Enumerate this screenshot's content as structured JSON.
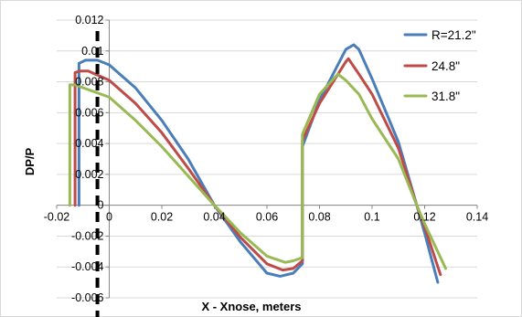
{
  "chart_data": {
    "type": "line",
    "xlabel": "X - Xnose, meters",
    "ylabel": "DP/P",
    "xlim": [
      -0.02,
      0.14
    ],
    "ylim": [
      -0.006,
      0.012
    ],
    "x_ticks": [
      -0.02,
      0,
      0.02,
      0.04,
      0.06,
      0.08,
      0.1,
      0.12,
      0.14
    ],
    "y_ticks": [
      -0.006,
      -0.004,
      -0.002,
      0,
      0.002,
      0.004,
      0.006,
      0.008,
      0.01,
      0.012
    ],
    "x_tick_labels": [
      "-0.02",
      "0",
      "0.02",
      "0.04",
      "0.06",
      "0.08",
      "0.1",
      "0.12",
      "0.14"
    ],
    "y_tick_labels": [
      "-0.006",
      "-0.004",
      "-0.002",
      "0",
      "0.002",
      "0.004",
      "0.006",
      "0.008",
      "0.01",
      "0.012"
    ],
    "grid": "horizontal",
    "legend": "right",
    "marker_line": {
      "x": -0.0045,
      "style": "dashed",
      "color": "#000000"
    },
    "series": [
      {
        "name": "R=21.2\"",
        "color": "#4a7ebb",
        "points": [
          [
            -0.0115,
            0
          ],
          [
            -0.0115,
            0.0092
          ],
          [
            -0.009,
            0.0094
          ],
          [
            -0.0045,
            0.0094
          ],
          [
            0.0,
            0.0091
          ],
          [
            0.01,
            0.0076
          ],
          [
            0.02,
            0.0055
          ],
          [
            0.03,
            0.003
          ],
          [
            0.04,
            0.0
          ],
          [
            0.05,
            -0.0024
          ],
          [
            0.06,
            -0.0044
          ],
          [
            0.065,
            -0.0046
          ],
          [
            0.07,
            -0.0044
          ],
          [
            0.0735,
            -0.0038
          ],
          [
            0.0735,
            0.0038
          ],
          [
            0.08,
            0.0068
          ],
          [
            0.09,
            0.0101
          ],
          [
            0.093,
            0.0104
          ],
          [
            0.095,
            0.0101
          ],
          [
            0.1,
            0.0082
          ],
          [
            0.11,
            0.0041
          ],
          [
            0.117,
            0.0
          ],
          [
            0.12,
            -0.0018
          ],
          [
            0.125,
            -0.005
          ]
        ]
      },
      {
        "name": "24.8\"",
        "color": "#be4b48",
        "points": [
          [
            -0.013,
            0
          ],
          [
            -0.013,
            0.0086
          ],
          [
            -0.011,
            0.0087
          ],
          [
            -0.008,
            0.0087
          ],
          [
            0.0,
            0.0081
          ],
          [
            0.01,
            0.0066
          ],
          [
            0.02,
            0.0047
          ],
          [
            0.03,
            0.0024
          ],
          [
            0.04,
            0.0
          ],
          [
            0.05,
            -0.0021
          ],
          [
            0.06,
            -0.0038
          ],
          [
            0.066,
            -0.0042
          ],
          [
            0.07,
            -0.0041
          ],
          [
            0.0735,
            -0.0036
          ],
          [
            0.0735,
            0.0042
          ],
          [
            0.08,
            0.0066
          ],
          [
            0.09,
            0.0093
          ],
          [
            0.091,
            0.0095
          ],
          [
            0.095,
            0.0085
          ],
          [
            0.1,
            0.0072
          ],
          [
            0.11,
            0.0037
          ],
          [
            0.117,
            0.0
          ],
          [
            0.12,
            -0.0014
          ],
          [
            0.126,
            -0.0045
          ]
        ]
      },
      {
        "name": "31.8\"",
        "color": "#98b954",
        "points": [
          [
            -0.015,
            0
          ],
          [
            -0.015,
            0.0078
          ],
          [
            -0.013,
            0.0078
          ],
          [
            0.0,
            0.007
          ],
          [
            0.01,
            0.0055
          ],
          [
            0.02,
            0.0038
          ],
          [
            0.03,
            0.0019
          ],
          [
            0.04,
            0.0
          ],
          [
            0.05,
            -0.0018
          ],
          [
            0.06,
            -0.0033
          ],
          [
            0.067,
            -0.0037
          ],
          [
            0.07,
            -0.0036
          ],
          [
            0.0735,
            -0.0034
          ],
          [
            0.0735,
            0.0046
          ],
          [
            0.08,
            0.0072
          ],
          [
            0.087,
            0.0085
          ],
          [
            0.09,
            0.0081
          ],
          [
            0.095,
            0.0072
          ],
          [
            0.1,
            0.0056
          ],
          [
            0.11,
            0.003
          ],
          [
            0.117,
            0.0
          ],
          [
            0.12,
            -0.0012
          ],
          [
            0.128,
            -0.0041
          ]
        ]
      }
    ]
  }
}
